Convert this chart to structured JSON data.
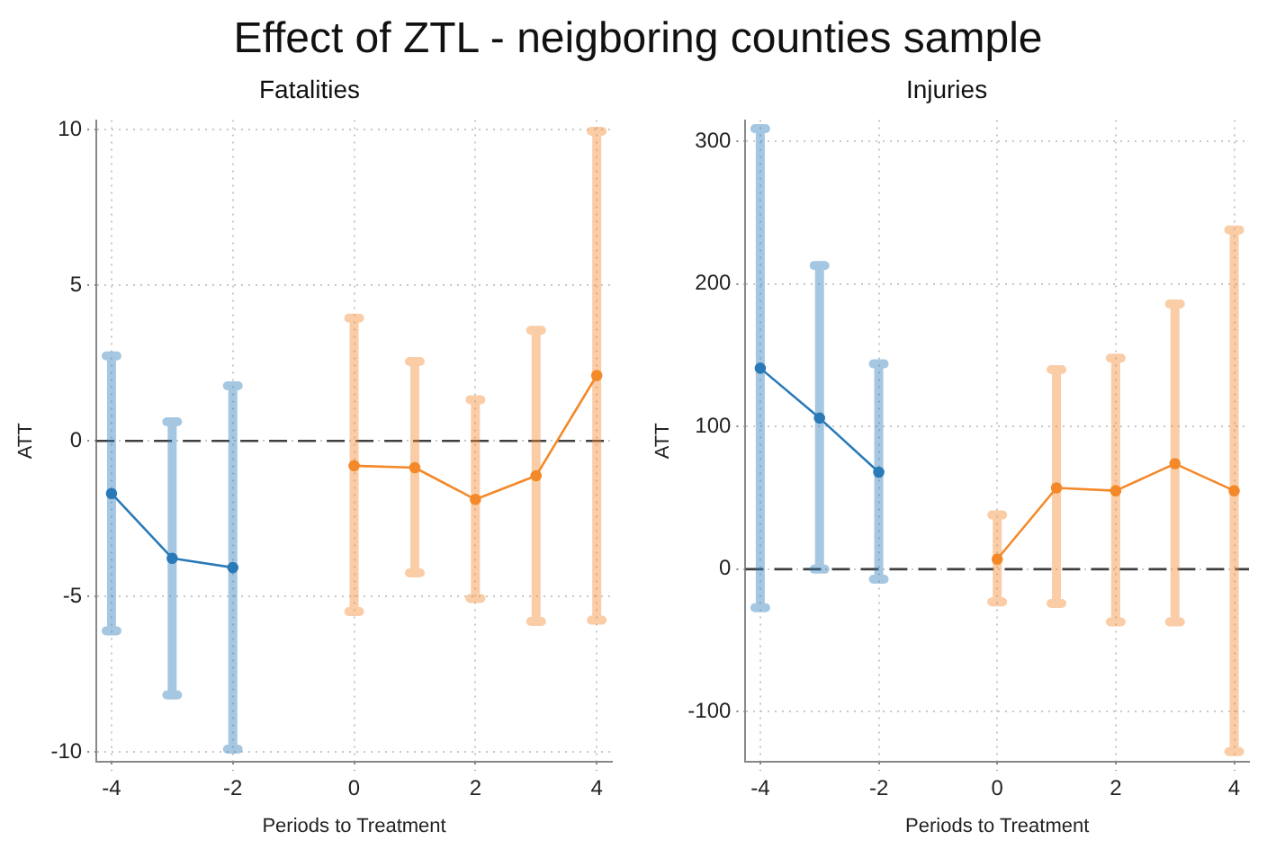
{
  "chart_data": [
    {
      "type": "line",
      "title": "Effect of ZTL - neigboring counties sample",
      "subtitle": "Fatalities",
      "xlabel": "Periods to Treatment",
      "ylabel": "ATT",
      "xlim": [
        -4.25,
        4.25
      ],
      "xticks": [
        -4,
        -2,
        0,
        2,
        4
      ],
      "ylim": [
        -10.3,
        10.3
      ],
      "yticks": [
        -10,
        -5,
        0,
        5,
        10
      ],
      "grid": true,
      "legend": false,
      "marker": "circle",
      "line_style": "solid",
      "ref_lines": [
        {
          "axis": "y",
          "value": 0,
          "color": "#404040",
          "line_style": "dashed"
        }
      ],
      "series": [
        {
          "color": "#2a7ab8",
          "x": [
            -4,
            -3,
            -2
          ],
          "values": [
            -1.69,
            -3.77,
            -4.07
          ],
          "errors": [
            [
              -6.1,
              2.73
            ],
            [
              -8.16,
              0.61
            ],
            [
              -9.9,
              1.77
            ]
          ]
        },
        {
          "color": "#f4892a",
          "x": [
            0,
            1,
            2,
            3,
            4
          ],
          "values": [
            -0.8,
            -0.86,
            -1.88,
            -1.12,
            2.1
          ],
          "errors": [
            [
              -5.48,
              3.94
            ],
            [
              -4.24,
              2.55
            ],
            [
              -5.06,
              1.32
            ],
            [
              -5.8,
              3.55
            ],
            [
              -5.76,
              9.94
            ]
          ]
        }
      ]
    },
    {
      "type": "line",
      "subtitle": "Injuries",
      "xlabel": "Periods to Treatment",
      "ylabel": "ATT",
      "xlim": [
        -4.25,
        4.25
      ],
      "xticks": [
        -4,
        -2,
        0,
        2,
        4
      ],
      "ylim": [
        -135,
        315
      ],
      "yticks": [
        -100,
        0,
        100,
        200,
        300
      ],
      "grid": true,
      "legend": false,
      "marker": "circle",
      "line_style": "solid",
      "ref_lines": [
        {
          "axis": "y",
          "value": 0,
          "color": "#404040",
          "line_style": "dashed"
        }
      ],
      "series": [
        {
          "color": "#2a7ab8",
          "x": [
            -4,
            -3,
            -2
          ],
          "values": [
            141,
            106,
            68
          ],
          "errors": [
            [
              -27,
              309
            ],
            [
              0,
              213
            ],
            [
              -7,
              144
            ]
          ]
        },
        {
          "color": "#f4892a",
          "x": [
            0,
            1,
            2,
            3,
            4
          ],
          "values": [
            7,
            57,
            55,
            74,
            55
          ],
          "errors": [
            [
              -23,
              38
            ],
            [
              -24,
              140
            ],
            [
              -37,
              148
            ],
            [
              -37,
              186
            ],
            [
              -128,
              238
            ]
          ]
        }
      ]
    }
  ]
}
